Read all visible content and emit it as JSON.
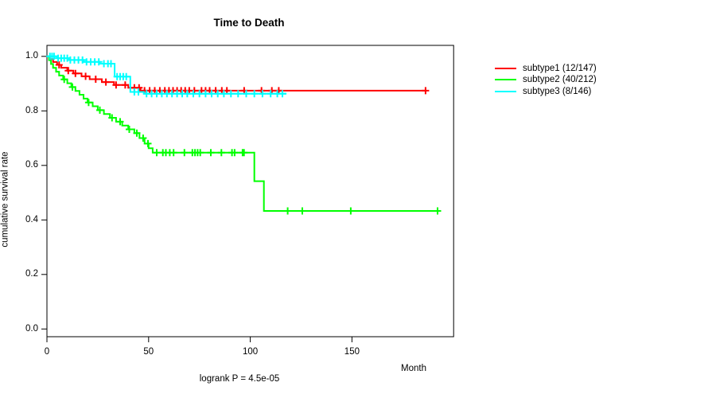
{
  "title": "Time to Death",
  "footer_note": "logrank P = 4.5e-05",
  "x_axis": {
    "label": "Month",
    "tick_labels": [
      "0",
      "50",
      "100",
      "150"
    ],
    "tick_values": [
      0,
      50,
      100,
      150
    ],
    "range": [
      0,
      200
    ]
  },
  "y_axis": {
    "label": "cumulative survival rate",
    "tick_labels": [
      "1.0",
      "0.8",
      "0.6",
      "0.4",
      "0.2",
      "0.0"
    ],
    "tick_values": [
      1.0,
      0.8,
      0.6,
      0.4,
      0.2,
      0.0
    ],
    "range": [
      0,
      1
    ]
  },
  "legend": {
    "position": "right",
    "items": [
      {
        "label": "subtype1 (12/147)",
        "color": "#FF0000"
      },
      {
        "label": "subtype2 (40/212)",
        "color": "#00FF00"
      },
      {
        "label": "subtype3 (8/146)",
        "color": "#00FFFF"
      }
    ]
  },
  "colors": {
    "background": "#FFFFFF",
    "axis": "#000000",
    "text": "#000000",
    "subtype1": "#FF0000",
    "subtype2": "#00FF00",
    "subtype3": "#00FFFF"
  },
  "chart_data": {
    "type": "line",
    "subtype": "kaplan-meier-step",
    "title": "Time to Death",
    "xlabel": "Month",
    "ylabel": "cumulative survival rate",
    "xlim": [
      0,
      200
    ],
    "ylim": [
      0,
      1
    ],
    "grid": false,
    "legend_position": "right",
    "annotation": "logrank P = 4.5e-05",
    "series": [
      {
        "name": "subtype1 (12/147)",
        "color": "#FF0000",
        "steps": [
          [
            0,
            1.0
          ],
          [
            1.5,
            0.9895
          ],
          [
            3,
            0.979
          ],
          [
            5,
            0.9685
          ],
          [
            7,
            0.958
          ],
          [
            10,
            0.9475
          ],
          [
            13,
            0.937
          ],
          [
            17,
            0.9265
          ],
          [
            21,
            0.916
          ],
          [
            27,
            0.9055
          ],
          [
            33,
            0.895
          ],
          [
            40,
            0.8845
          ],
          [
            46,
            0.874
          ],
          [
            186.2,
            0.874
          ]
        ],
        "censor_marks": [
          6,
          10.5,
          14,
          19,
          24,
          29,
          34,
          38.5,
          43,
          45.3,
          48,
          50.5,
          53,
          55.5,
          58,
          60,
          62,
          64,
          66,
          68,
          70,
          72.5,
          76,
          78,
          80,
          83,
          86,
          88.5,
          97,
          105.5,
          110.6,
          114,
          186.2
        ]
      },
      {
        "name": "subtype2 (40/212)",
        "color": "#00FF00",
        "steps": [
          [
            0,
            1.0
          ],
          [
            1,
            0.9859
          ],
          [
            2,
            0.9718
          ],
          [
            3,
            0.9577
          ],
          [
            4.5,
            0.9436
          ],
          [
            6,
            0.9295
          ],
          [
            8,
            0.9154
          ],
          [
            10,
            0.9013
          ],
          [
            12,
            0.8872
          ],
          [
            14,
            0.8731
          ],
          [
            16,
            0.859
          ],
          [
            18,
            0.8449
          ],
          [
            20,
            0.8308
          ],
          [
            22.5,
            0.8167
          ],
          [
            25,
            0.8026
          ],
          [
            28,
            0.7885
          ],
          [
            31,
            0.7744
          ],
          [
            34,
            0.7603
          ],
          [
            37,
            0.7462
          ],
          [
            40,
            0.7321
          ],
          [
            43,
            0.718
          ],
          [
            45.5,
            0.7
          ],
          [
            48,
            0.68
          ],
          [
            50,
            0.663
          ],
          [
            52,
            0.647
          ],
          [
            102,
            0.542
          ],
          [
            106.7,
            0.433
          ],
          [
            193,
            0.433
          ]
        ],
        "censor_marks": [
          8.5,
          12.5,
          20.5,
          26,
          32,
          36,
          40.5,
          44.2,
          47.3,
          49.7,
          54,
          57,
          58.5,
          60.4,
          62.3,
          67.6,
          71.5,
          72.8,
          74.1,
          75.4,
          80.6,
          85.8,
          91,
          92.3,
          96.2,
          96.9,
          118.4,
          125.6,
          149.4,
          192.1
        ]
      },
      {
        "name": "subtype3 (8/146)",
        "color": "#00FFFF",
        "steps": [
          [
            0,
            1.0
          ],
          [
            5,
            0.993
          ],
          [
            11,
            0.9863
          ],
          [
            18,
            0.9795
          ],
          [
            26,
            0.973
          ],
          [
            33.3,
            0.9255
          ],
          [
            41,
            0.8695
          ],
          [
            47.7,
            0.863
          ],
          [
            117.8,
            0.863
          ]
        ],
        "censor_marks": [
          1.5,
          2.5,
          3.5,
          5.5,
          7,
          8.5,
          10,
          11.5,
          13.5,
          15.5,
          17.5,
          19.5,
          21.5,
          23.5,
          25.5,
          28,
          30,
          31.5,
          34.5,
          36,
          37.5,
          39,
          43,
          45,
          49,
          51.5,
          54,
          56.5,
          59,
          61.5,
          64,
          66.5,
          69,
          72,
          75,
          78,
          81,
          84,
          87,
          90.5,
          94,
          98,
          102,
          106,
          110,
          113.3,
          115.8
        ]
      }
    ]
  }
}
